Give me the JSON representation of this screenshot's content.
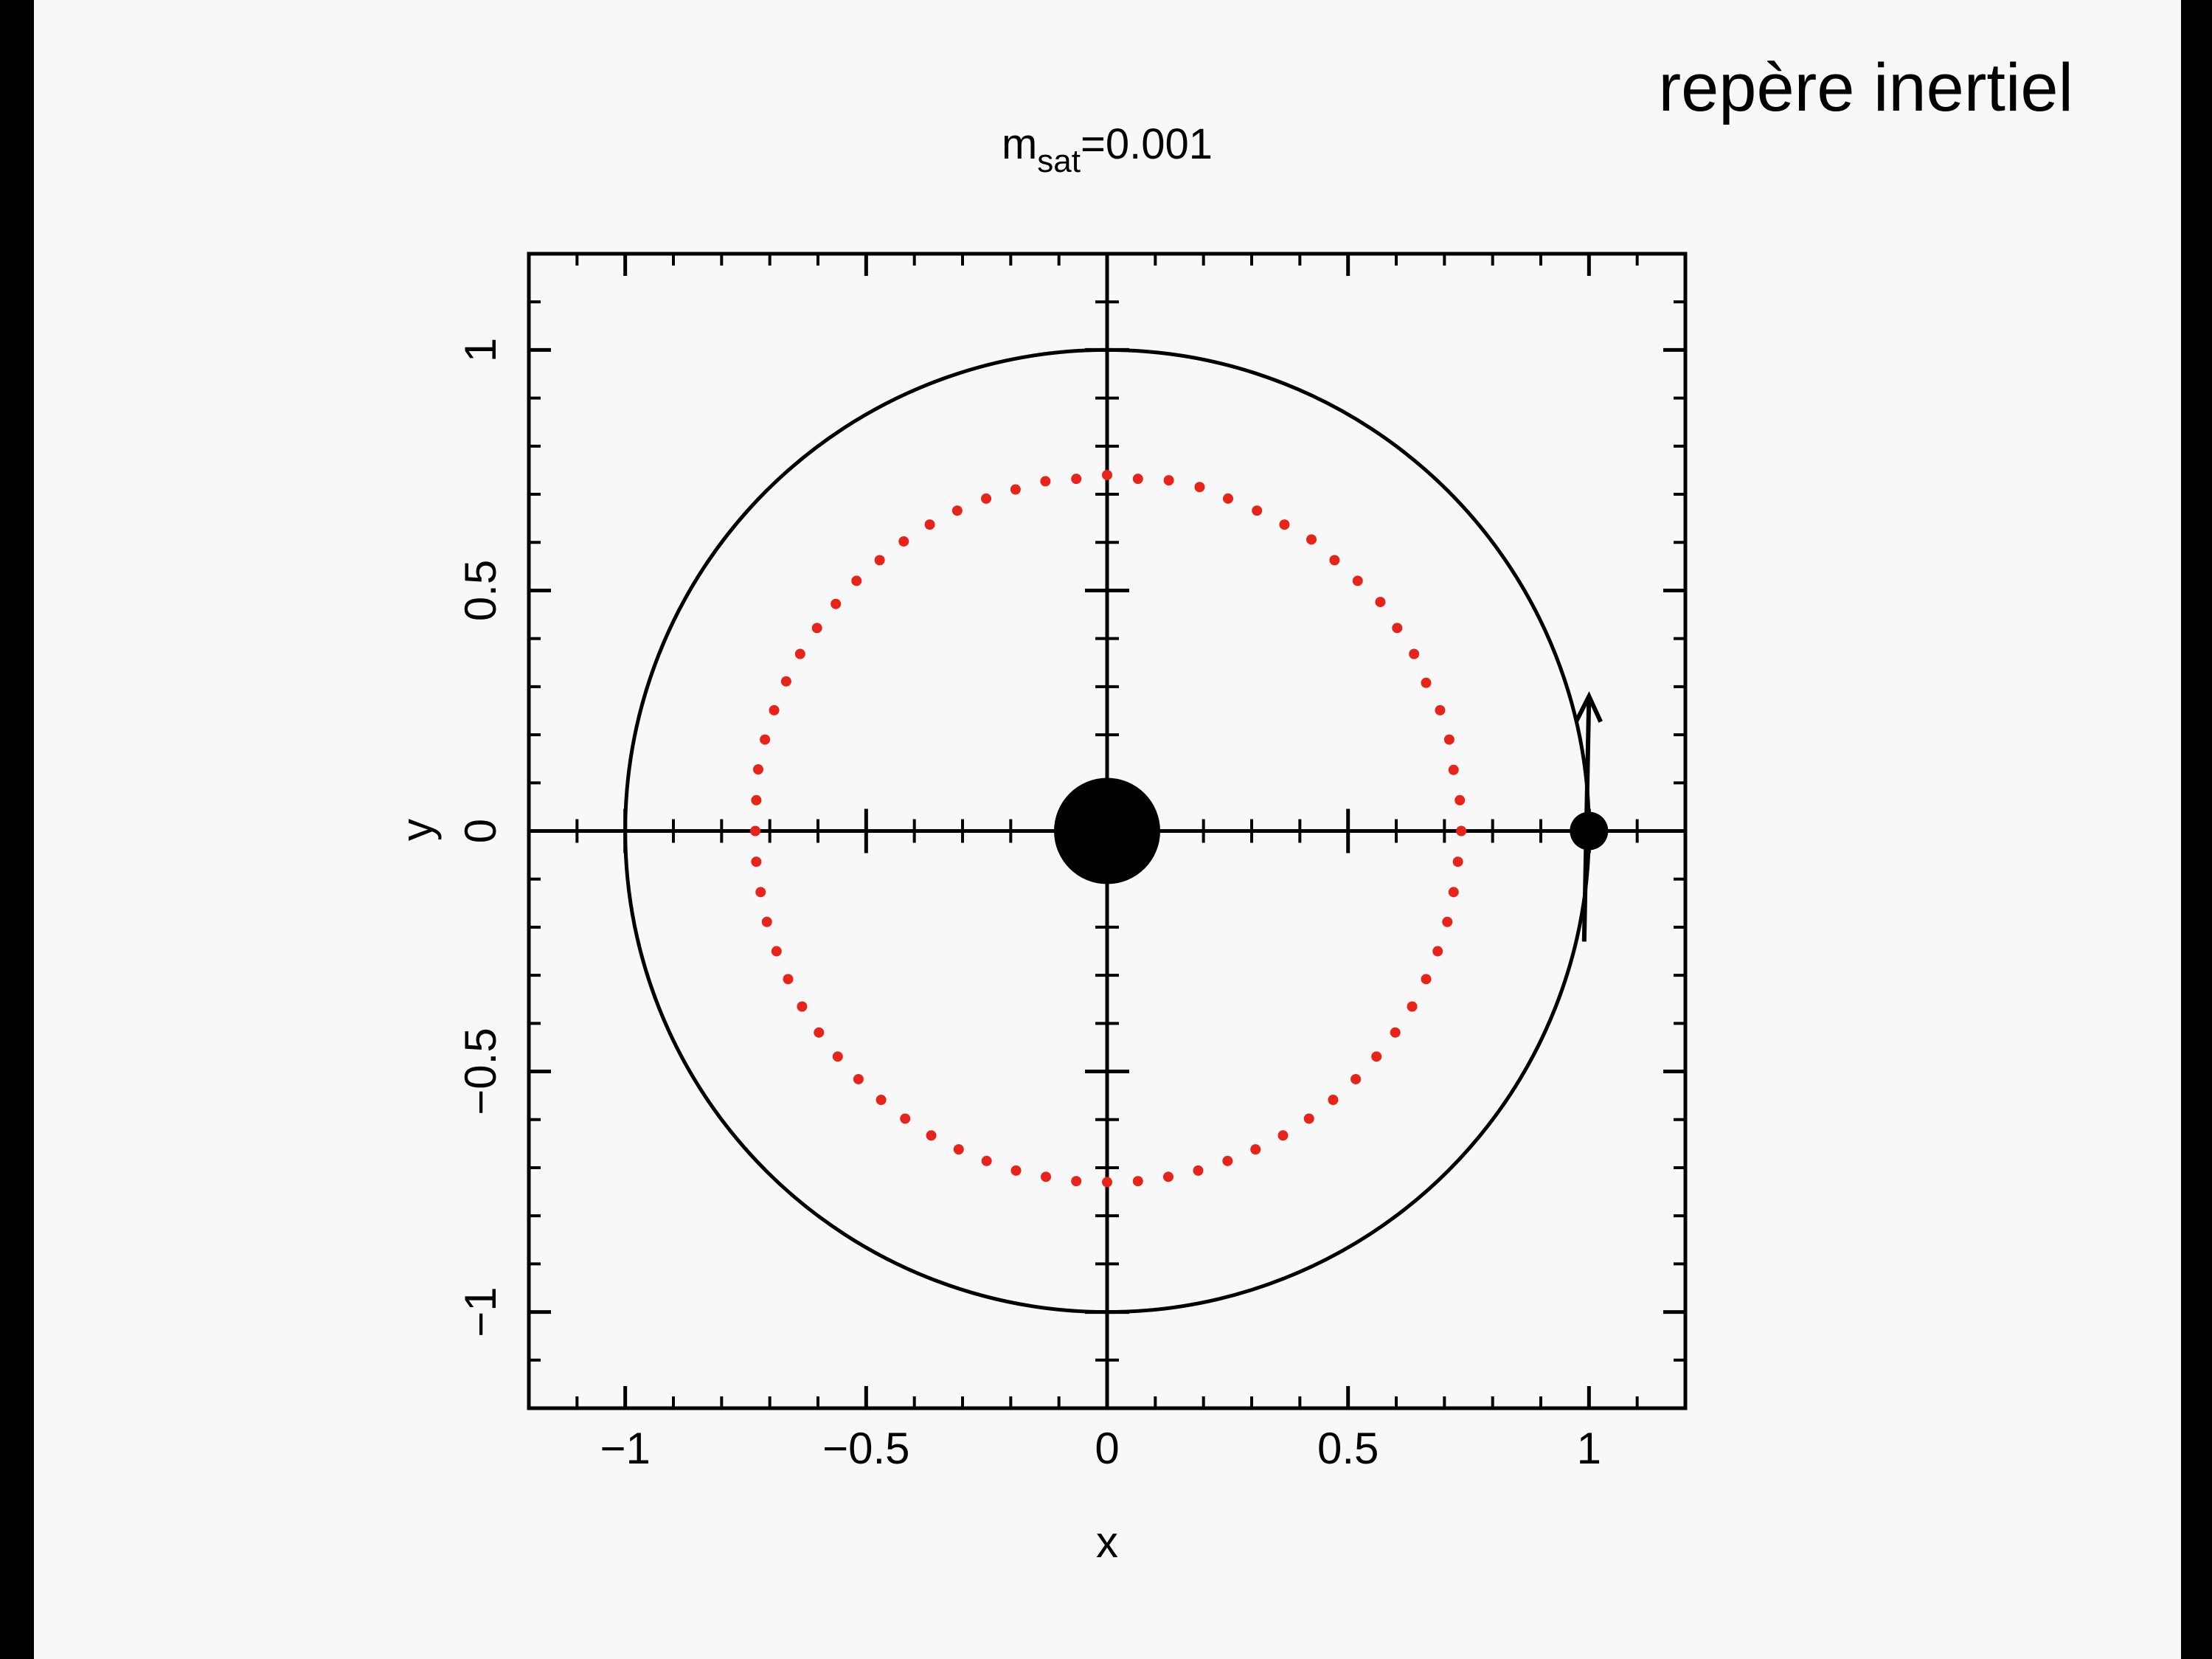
{
  "chart_data": {
    "type": "scatter",
    "title": {
      "base": "m",
      "sub": "sat",
      "rest": "=0.001"
    },
    "annotation": "repère inertiel",
    "x_label": "x",
    "y_label": "y",
    "xlim": [
      -1.2,
      1.2
    ],
    "ylim": [
      -1.2,
      1.2
    ],
    "xticks": [
      {
        "value": -1,
        "label": "−1"
      },
      {
        "value": -0.5,
        "label": "−0.5"
      },
      0,
      0.5,
      1
    ],
    "yticks": [
      {
        "value": -1,
        "label": "−1"
      },
      {
        "value": -0.5,
        "label": "−0.5"
      },
      0,
      0.5,
      1
    ],
    "orbit_radius": 1,
    "bodies": {
      "x": [
        0,
        1
      ],
      "y": [
        0,
        0
      ]
    },
    "velocity": {
      "x": [
        0.99,
        1.0
      ],
      "y": [
        -0.23,
        0.28
      ]
    },
    "color": "#e8241a",
    "x": [
      0.735,
      0.732,
      0.719,
      0.71,
      0.691,
      0.662,
      0.637,
      0.602,
      0.567,
      0.52,
      0.472,
      0.424,
      0.368,
      0.311,
      0.251,
      0.192,
      0.128,
      0.064,
      0.0,
      -0.064,
      -0.128,
      -0.19,
      -0.251,
      -0.311,
      -0.368,
      -0.422,
      -0.472,
      -0.52,
      -0.563,
      -0.602,
      -0.637,
      -0.666,
      -0.691,
      -0.71,
      -0.724,
      -0.728,
      -0.73,
      -0.728,
      -0.719,
      -0.706,
      -0.686,
      -0.662,
      -0.633,
      -0.598,
      -0.559,
      -0.516,
      -0.469,
      -0.419,
      -0.365,
      -0.308,
      -0.25,
      -0.189,
      -0.127,
      -0.064,
      0.0,
      0.064,
      0.127,
      0.189,
      0.25,
      0.308,
      0.365,
      0.419,
      0.469,
      0.516,
      0.559,
      0.598,
      0.633,
      0.662,
      0.686,
      0.706,
      0.719,
      0.728
    ],
    "y": [
      0.0,
      0.064,
      0.127,
      0.19,
      0.251,
      0.308,
      0.368,
      0.422,
      0.476,
      0.52,
      0.563,
      0.606,
      0.637,
      0.666,
      0.691,
      0.715,
      0.729,
      0.732,
      0.74,
      0.732,
      0.727,
      0.71,
      0.691,
      0.666,
      0.637,
      0.602,
      0.563,
      0.52,
      0.472,
      0.422,
      0.368,
      0.311,
      0.251,
      0.19,
      0.128,
      0.064,
      0.0,
      -0.064,
      -0.127,
      -0.189,
      -0.25,
      -0.308,
      -0.365,
      -0.419,
      -0.469,
      -0.516,
      -0.559,
      -0.598,
      -0.633,
      -0.662,
      -0.686,
      -0.706,
      -0.719,
      -0.728,
      -0.73,
      -0.728,
      -0.719,
      -0.706,
      -0.686,
      -0.662,
      -0.633,
      -0.598,
      -0.559,
      -0.516,
      -0.469,
      -0.419,
      -0.365,
      -0.308,
      -0.25,
      -0.189,
      -0.127,
      -0.064
    ]
  }
}
